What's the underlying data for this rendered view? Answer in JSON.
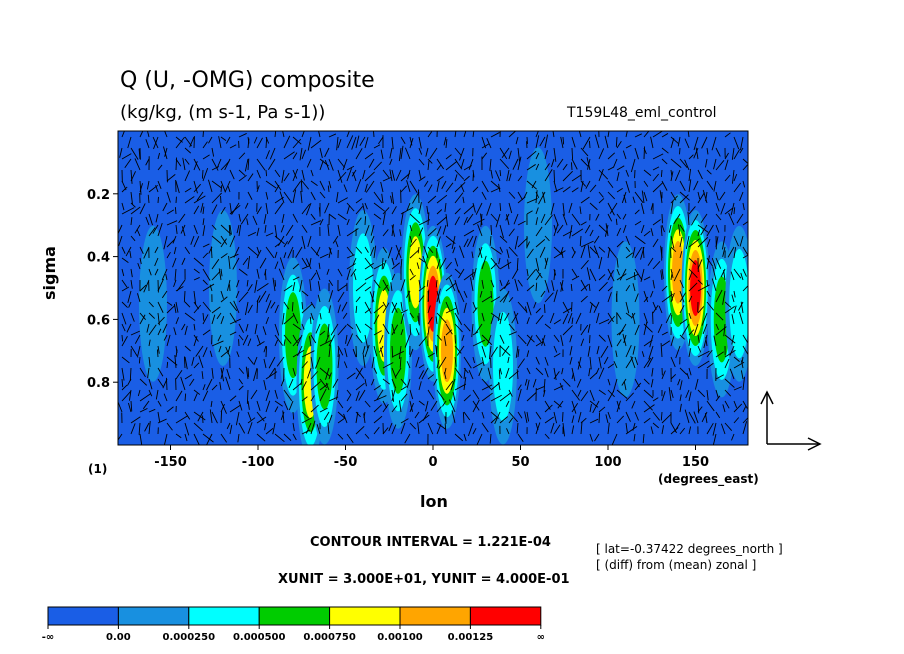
{
  "chart_data": {
    "type": "heatmap",
    "title": "Q (U, -OMG) composite",
    "subtitle": "(kg/kg, (m s-1, Pa s-1))",
    "run_label": "T159L48_eml_control",
    "xlabel": "lon",
    "x_unit_label": "(degrees_east)",
    "ylabel": "sigma",
    "panel_label": "(1)",
    "xlim": [
      -180,
      180
    ],
    "ylim": [
      1.0,
      0.0
    ],
    "x_ticks": [
      -150,
      -100,
      -50,
      0,
      50,
      100,
      150
    ],
    "y_ticks": [
      0.2,
      0.4,
      0.6,
      0.8
    ],
    "contour_interval_text": "CONTOUR INTERVAL = 1.221E-04",
    "vector_units_text": "XUNIT = 3.000E+01, YUNIT = 4.000E-01",
    "info_lines": [
      "[ lat=-0.37422 degrees_north ]",
      "[ (diff) from (mean) zonal ]"
    ],
    "colorbar": {
      "labels": [
        "-∞",
        "0.00",
        "0.000250",
        "0.000500",
        "0.000750",
        "0.00100",
        "0.00125",
        "∞"
      ],
      "colors": [
        "#1a5ee6",
        "#1890e0",
        "#00ffff",
        "#00cc00",
        "#ffff00",
        "#ffa500",
        "#ff0000"
      ]
    },
    "field_regions": [
      {
        "lon": -160,
        "sigma": 0.55,
        "level": 1
      },
      {
        "lon": -120,
        "sigma": 0.5,
        "level": 1
      },
      {
        "lon": -80,
        "sigma": 0.65,
        "level": 3
      },
      {
        "lon": -70,
        "sigma": 0.8,
        "level": 4
      },
      {
        "lon": -62,
        "sigma": 0.75,
        "level": 3
      },
      {
        "lon": -40,
        "sigma": 0.5,
        "level": 2
      },
      {
        "lon": -28,
        "sigma": 0.62,
        "level": 4
      },
      {
        "lon": -20,
        "sigma": 0.7,
        "level": 3
      },
      {
        "lon": -10,
        "sigma": 0.45,
        "level": 4
      },
      {
        "lon": 0,
        "sigma": 0.55,
        "level": 6
      },
      {
        "lon": 8,
        "sigma": 0.7,
        "level": 5
      },
      {
        "lon": 30,
        "sigma": 0.55,
        "level": 3
      },
      {
        "lon": 40,
        "sigma": 0.75,
        "level": 2
      },
      {
        "lon": 60,
        "sigma": 0.3,
        "level": 1
      },
      {
        "lon": 85,
        "sigma": 0.4,
        "level": 0
      },
      {
        "lon": 110,
        "sigma": 0.6,
        "level": 1
      },
      {
        "lon": 140,
        "sigma": 0.45,
        "level": 5
      },
      {
        "lon": 150,
        "sigma": 0.5,
        "level": 6
      },
      {
        "lon": 165,
        "sigma": 0.6,
        "level": 3
      },
      {
        "lon": 175,
        "sigma": 0.55,
        "level": 2
      }
    ]
  }
}
